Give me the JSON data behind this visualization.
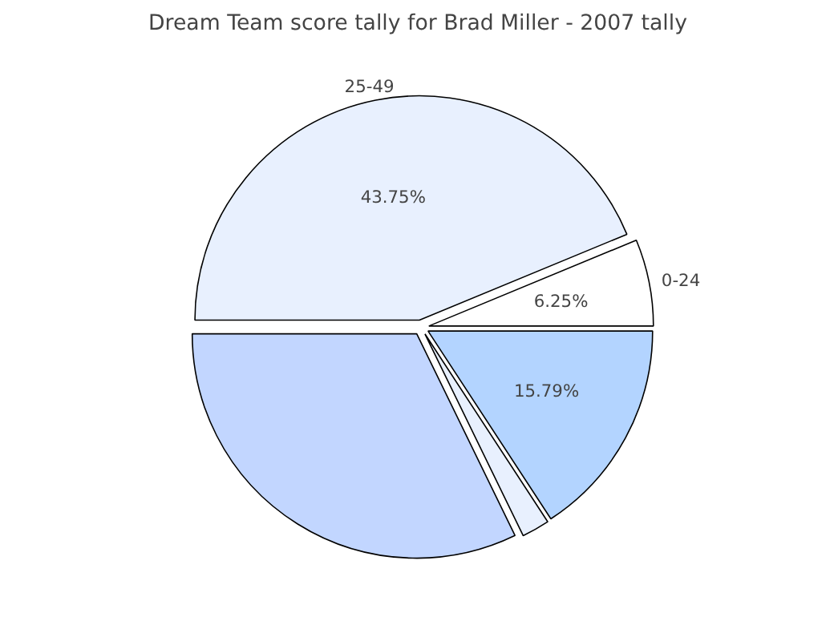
{
  "chart_data": {
    "type": "pie",
    "title": "Dream Team score tally for Brad Miller - 2007 tally",
    "categories": [
      "25-49",
      "0-24",
      null,
      null,
      null
    ],
    "values": [
      43.75,
      6.25,
      15.79,
      2,
      32.21
    ],
    "value_labels": [
      "43.75%",
      "6.25%",
      "15.79%",
      null,
      null
    ],
    "colors": [
      "#e8f0fe",
      "#ffffff",
      "#b3d4ff",
      "#e8f0fe",
      "#c2d6ff"
    ]
  }
}
